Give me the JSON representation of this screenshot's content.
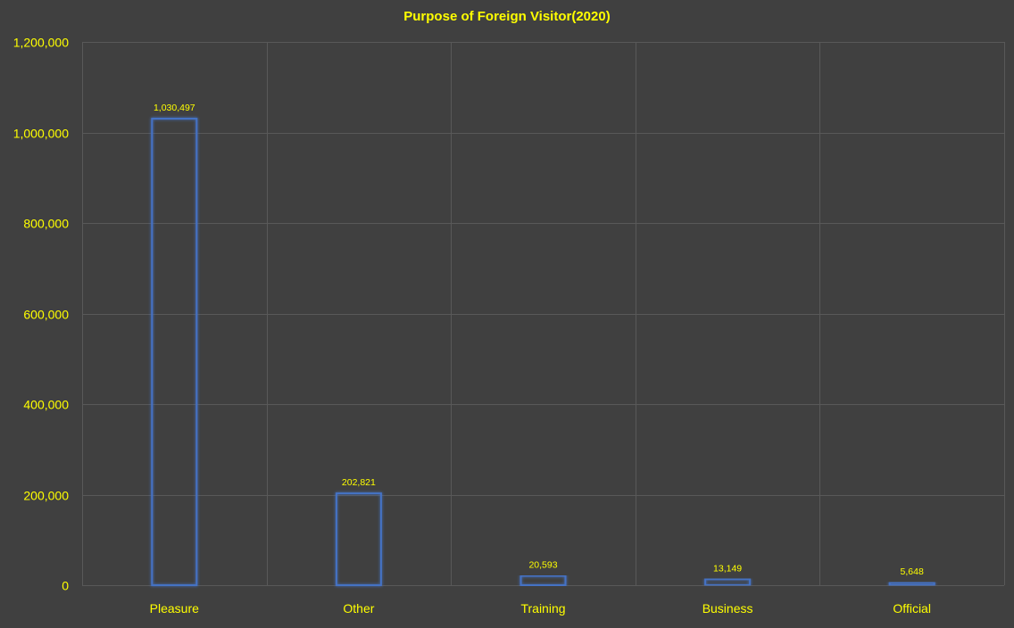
{
  "chart_data": {
    "type": "bar",
    "title": "Purpose of Foreign Visitor(2020)",
    "xlabel": "",
    "ylabel": "",
    "categories": [
      "Pleasure",
      "Other",
      "Training",
      "Business",
      "Official"
    ],
    "values": [
      1030497,
      202821,
      20593,
      13149,
      5648
    ],
    "value_labels": [
      "1,030,497",
      "202,821",
      "20,593",
      "13,149",
      "5,648"
    ],
    "ylim": [
      0,
      1200000
    ],
    "yticks": [
      0,
      200000,
      400000,
      600000,
      800000,
      1000000,
      1200000
    ],
    "ytick_labels": [
      "0",
      "200,000",
      "400,000",
      "600,000",
      "800,000",
      "1,000,000",
      "1,200,000"
    ],
    "grid": true,
    "legend": "none",
    "colors": {
      "background": "#404040",
      "text": "#FFFF00",
      "bar_outline": "#4472C4",
      "gridline": "#595959"
    }
  }
}
